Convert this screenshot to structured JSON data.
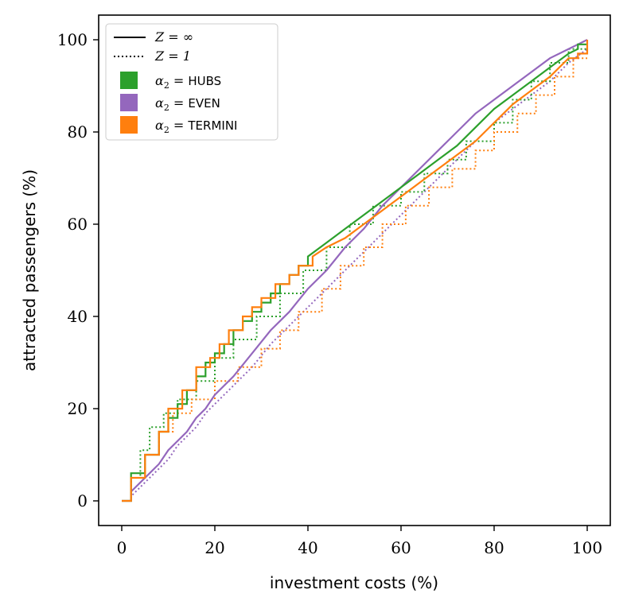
{
  "chart_data": {
    "type": "line",
    "title": "",
    "xlabel": "investment costs (%)",
    "ylabel": "attracted passengers (%)",
    "xlim": [
      -5,
      105
    ],
    "ylim": [
      -5,
      105
    ],
    "xticks": [
      0,
      20,
      40,
      60,
      80,
      100
    ],
    "yticks": [
      0,
      20,
      40,
      60,
      80,
      100
    ],
    "grid": false,
    "legend_position": "top-left",
    "legend": {
      "line_styles": [
        {
          "label": "Z = ∞",
          "style": "solid"
        },
        {
          "label": "Z = 1",
          "style": "dotted"
        }
      ],
      "colors": [
        {
          "label": "α2 = HUBS",
          "symbol": "α",
          "sub": "2",
          "name": "HUBS",
          "color": "#2ca02c"
        },
        {
          "label": "α2 = EVEN",
          "symbol": "α",
          "sub": "2",
          "name": "EVEN",
          "color": "#9467bd"
        },
        {
          "label": "α2 = TERMINI",
          "symbol": "α",
          "sub": "2",
          "name": "TERMINI",
          "color": "#ff7f0e"
        }
      ]
    },
    "series": [
      {
        "alpha2": "HUBS",
        "Z": "∞",
        "color": "#2ca02c",
        "style": "solid",
        "points": [
          [
            0,
            0
          ],
          [
            2,
            0
          ],
          [
            2,
            6
          ],
          [
            5,
            6
          ],
          [
            5,
            10
          ],
          [
            8,
            10
          ],
          [
            8,
            15
          ],
          [
            10,
            15
          ],
          [
            10,
            18
          ],
          [
            12,
            18
          ],
          [
            12,
            21
          ],
          [
            14,
            21
          ],
          [
            14,
            24
          ],
          [
            16,
            24
          ],
          [
            16,
            27
          ],
          [
            18,
            27
          ],
          [
            18,
            30
          ],
          [
            20,
            30
          ],
          [
            20,
            32
          ],
          [
            22,
            32
          ],
          [
            22,
            34
          ],
          [
            24,
            34
          ],
          [
            24,
            37
          ],
          [
            26,
            37
          ],
          [
            26,
            39
          ],
          [
            28,
            39
          ],
          [
            28,
            41
          ],
          [
            30,
            41
          ],
          [
            30,
            43
          ],
          [
            32,
            43
          ],
          [
            32,
            45
          ],
          [
            34,
            45
          ],
          [
            34,
            47
          ],
          [
            36,
            47
          ],
          [
            36,
            49
          ],
          [
            38,
            49
          ],
          [
            38,
            51
          ],
          [
            40,
            51
          ],
          [
            40,
            53
          ],
          [
            44,
            56
          ],
          [
            48,
            59
          ],
          [
            52,
            62
          ],
          [
            56,
            65
          ],
          [
            60,
            68
          ],
          [
            64,
            71
          ],
          [
            68,
            74
          ],
          [
            72,
            77
          ],
          [
            76,
            81
          ],
          [
            80,
            85
          ],
          [
            84,
            88
          ],
          [
            88,
            91
          ],
          [
            92,
            94
          ],
          [
            96,
            97
          ],
          [
            98,
            98
          ],
          [
            98,
            99
          ],
          [
            100,
            99
          ]
        ]
      },
      {
        "alpha2": "EVEN",
        "Z": "∞",
        "color": "#9467bd",
        "style": "solid",
        "points": [
          [
            0,
            0
          ],
          [
            2,
            0
          ],
          [
            2,
            2
          ],
          [
            4,
            4
          ],
          [
            6,
            6
          ],
          [
            8,
            8
          ],
          [
            10,
            11
          ],
          [
            12,
            13
          ],
          [
            14,
            15
          ],
          [
            16,
            18
          ],
          [
            18,
            20
          ],
          [
            20,
            23
          ],
          [
            24,
            27
          ],
          [
            28,
            32
          ],
          [
            32,
            37
          ],
          [
            36,
            41
          ],
          [
            40,
            46
          ],
          [
            44,
            50
          ],
          [
            48,
            55
          ],
          [
            52,
            59
          ],
          [
            56,
            64
          ],
          [
            60,
            68
          ],
          [
            64,
            72
          ],
          [
            68,
            76
          ],
          [
            72,
            80
          ],
          [
            76,
            84
          ],
          [
            80,
            87
          ],
          [
            84,
            90
          ],
          [
            88,
            93
          ],
          [
            92,
            96
          ],
          [
            96,
            98
          ],
          [
            98,
            99
          ],
          [
            100,
            100
          ]
        ]
      },
      {
        "alpha2": "TERMINI",
        "Z": "∞",
        "color": "#ff7f0e",
        "style": "solid",
        "points": [
          [
            0,
            0
          ],
          [
            2,
            0
          ],
          [
            2,
            5
          ],
          [
            5,
            5
          ],
          [
            5,
            10
          ],
          [
            8,
            10
          ],
          [
            8,
            15
          ],
          [
            10,
            15
          ],
          [
            10,
            20
          ],
          [
            13,
            20
          ],
          [
            13,
            24
          ],
          [
            16,
            24
          ],
          [
            16,
            29
          ],
          [
            19,
            29
          ],
          [
            19,
            31
          ],
          [
            21,
            31
          ],
          [
            21,
            34
          ],
          [
            23,
            34
          ],
          [
            23,
            37
          ],
          [
            26,
            37
          ],
          [
            26,
            40
          ],
          [
            28,
            40
          ],
          [
            28,
            42
          ],
          [
            30,
            42
          ],
          [
            30,
            44
          ],
          [
            33,
            44
          ],
          [
            33,
            47
          ],
          [
            36,
            47
          ],
          [
            36,
            49
          ],
          [
            38,
            49
          ],
          [
            38,
            51
          ],
          [
            41,
            51
          ],
          [
            41,
            53
          ],
          [
            44,
            55
          ],
          [
            48,
            57
          ],
          [
            52,
            60
          ],
          [
            56,
            63
          ],
          [
            60,
            66
          ],
          [
            64,
            69
          ],
          [
            68,
            72
          ],
          [
            72,
            75
          ],
          [
            76,
            78
          ],
          [
            80,
            82
          ],
          [
            84,
            86
          ],
          [
            88,
            89
          ],
          [
            92,
            92
          ],
          [
            96,
            96
          ],
          [
            98,
            96
          ],
          [
            98,
            97
          ],
          [
            100,
            97
          ],
          [
            100,
            100
          ]
        ]
      },
      {
        "alpha2": "HUBS",
        "Z": "1",
        "color": "#2ca02c",
        "style": "dotted",
        "points": [
          [
            0,
            0
          ],
          [
            2,
            0
          ],
          [
            2,
            5
          ],
          [
            4,
            5
          ],
          [
            4,
            11
          ],
          [
            6,
            11
          ],
          [
            6,
            16
          ],
          [
            9,
            16
          ],
          [
            9,
            19
          ],
          [
            12,
            19
          ],
          [
            12,
            22
          ],
          [
            16,
            22
          ],
          [
            16,
            26
          ],
          [
            20,
            26
          ],
          [
            20,
            31
          ],
          [
            24,
            31
          ],
          [
            24,
            35
          ],
          [
            29,
            35
          ],
          [
            29,
            40
          ],
          [
            34,
            40
          ],
          [
            34,
            45
          ],
          [
            39,
            45
          ],
          [
            39,
            50
          ],
          [
            44,
            50
          ],
          [
            44,
            55
          ],
          [
            49,
            55
          ],
          [
            49,
            60
          ],
          [
            54,
            60
          ],
          [
            54,
            64
          ],
          [
            60,
            64
          ],
          [
            60,
            67
          ],
          [
            65,
            67
          ],
          [
            65,
            71
          ],
          [
            70,
            71
          ],
          [
            70,
            74
          ],
          [
            74,
            74
          ],
          [
            74,
            78
          ],
          [
            80,
            78
          ],
          [
            80,
            82
          ],
          [
            84,
            82
          ],
          [
            84,
            87
          ],
          [
            88,
            87
          ],
          [
            88,
            91
          ],
          [
            92,
            91
          ],
          [
            92,
            95
          ],
          [
            96,
            95
          ],
          [
            96,
            98
          ],
          [
            100,
            98
          ]
        ]
      },
      {
        "alpha2": "EVEN",
        "Z": "1",
        "color": "#9467bd",
        "style": "dotted",
        "points": [
          [
            0,
            0
          ],
          [
            2,
            0
          ],
          [
            2,
            1
          ],
          [
            4,
            3
          ],
          [
            6,
            5
          ],
          [
            8,
            7
          ],
          [
            10,
            9
          ],
          [
            12,
            12
          ],
          [
            14,
            14
          ],
          [
            16,
            16
          ],
          [
            18,
            19
          ],
          [
            20,
            21
          ],
          [
            24,
            25
          ],
          [
            28,
            29
          ],
          [
            32,
            34
          ],
          [
            36,
            38
          ],
          [
            40,
            42
          ],
          [
            44,
            46
          ],
          [
            48,
            50
          ],
          [
            52,
            54
          ],
          [
            56,
            58
          ],
          [
            60,
            62
          ],
          [
            64,
            66
          ],
          [
            68,
            70
          ],
          [
            72,
            74
          ],
          [
            76,
            78
          ],
          [
            80,
            82
          ],
          [
            84,
            85
          ],
          [
            88,
            88
          ],
          [
            92,
            91
          ],
          [
            96,
            95
          ],
          [
            100,
            98
          ]
        ]
      },
      {
        "alpha2": "TERMINI",
        "Z": "1",
        "color": "#ff7f0e",
        "style": "dotted",
        "points": [
          [
            0,
            0
          ],
          [
            2,
            0
          ],
          [
            2,
            5
          ],
          [
            5,
            5
          ],
          [
            5,
            10
          ],
          [
            8,
            10
          ],
          [
            8,
            15
          ],
          [
            11,
            15
          ],
          [
            11,
            19
          ],
          [
            15,
            19
          ],
          [
            15,
            22
          ],
          [
            20,
            22
          ],
          [
            20,
            26
          ],
          [
            25,
            26
          ],
          [
            25,
            29
          ],
          [
            30,
            29
          ],
          [
            30,
            33
          ],
          [
            34,
            33
          ],
          [
            34,
            37
          ],
          [
            38,
            37
          ],
          [
            38,
            41
          ],
          [
            43,
            41
          ],
          [
            43,
            46
          ],
          [
            47,
            46
          ],
          [
            47,
            51
          ],
          [
            52,
            51
          ],
          [
            52,
            55
          ],
          [
            56,
            55
          ],
          [
            56,
            60
          ],
          [
            61,
            60
          ],
          [
            61,
            64
          ],
          [
            66,
            64
          ],
          [
            66,
            68
          ],
          [
            71,
            68
          ],
          [
            71,
            72
          ],
          [
            76,
            72
          ],
          [
            76,
            76
          ],
          [
            80,
            76
          ],
          [
            80,
            80
          ],
          [
            85,
            80
          ],
          [
            85,
            84
          ],
          [
            89,
            84
          ],
          [
            89,
            88
          ],
          [
            93,
            88
          ],
          [
            93,
            92
          ],
          [
            97,
            92
          ],
          [
            97,
            96
          ],
          [
            100,
            96
          ]
        ]
      }
    ]
  }
}
